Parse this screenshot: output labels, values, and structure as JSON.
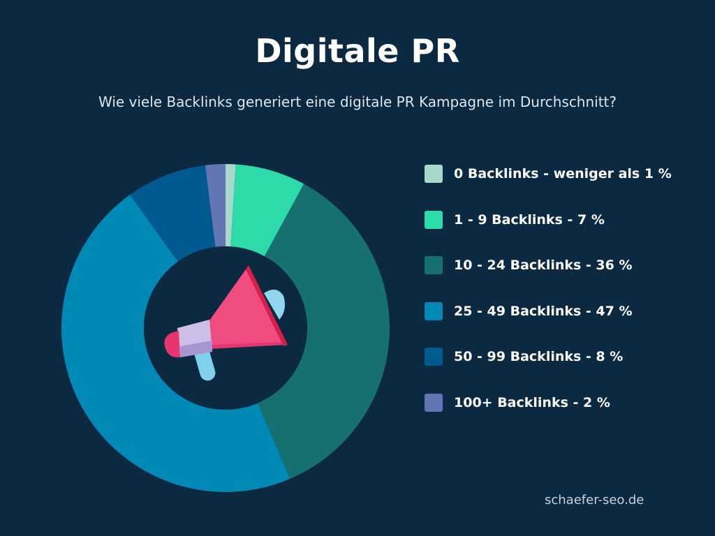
{
  "header": {
    "title": "Digitale PR",
    "subtitle": "Wie viele Backlinks generiert eine digitale PR Kampagne im Durchschnitt?"
  },
  "chart_data": {
    "type": "pie",
    "title": "Digitale PR",
    "subtitle": "Wie viele Backlinks generiert eine digitale PR Kampagne im Durchschnitt?",
    "style": "donut",
    "categories": [
      "0 Backlinks",
      "1 - 9 Backlinks",
      "10 - 24 Backlinks",
      "25 - 49 Backlinks",
      "50 - 99 Backlinks",
      "100+ Backlinks"
    ],
    "values": [
      1,
      7,
      36,
      47,
      8,
      2
    ],
    "colors": [
      "#a8d8cc",
      "#2ddbaa",
      "#177070",
      "#0089b5",
      "#005a90",
      "#6276b3"
    ],
    "legend": {
      "position": "right",
      "entries": [
        "0 Backlinks - weniger als 1 %",
        "1 - 9 Backlinks - 7 %",
        "10 - 24 Backlinks - 36 %",
        "25 - 49 Backlinks - 47 %",
        "50 - 99 Backlinks - 8 %",
        "100+ Backlinks - 2 %"
      ]
    },
    "center_icon": "megaphone-icon"
  },
  "footer": {
    "source": "schaefer-seo.de"
  }
}
